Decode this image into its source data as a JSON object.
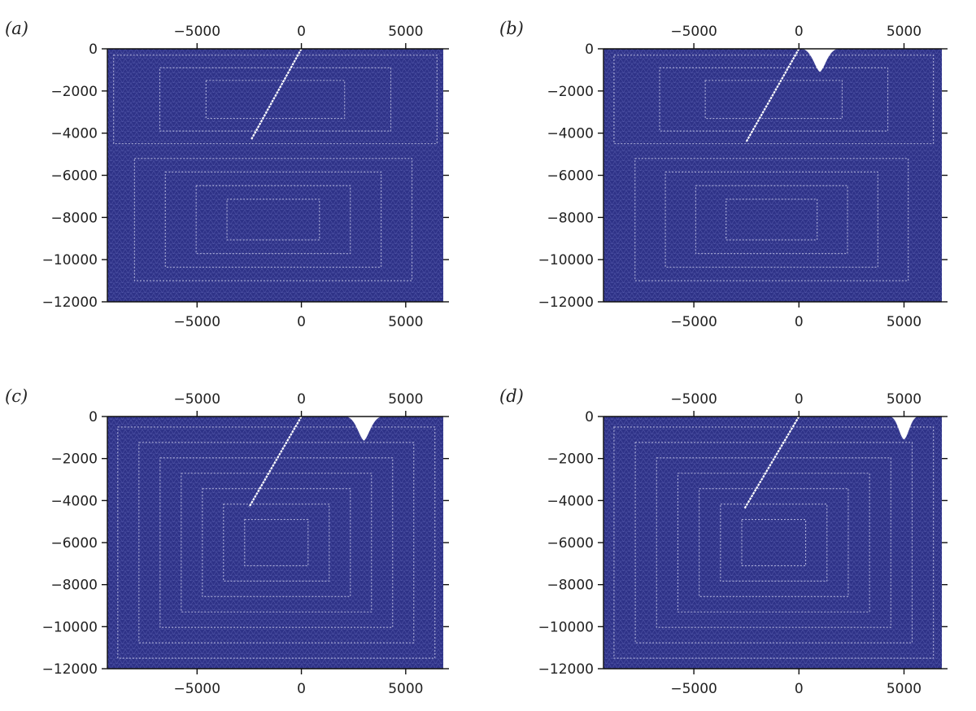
{
  "colors": {
    "mesh": "#2f3388",
    "mesh_line": "#c9cbe8",
    "fault": "#ffffff",
    "notch": "#ffffff"
  },
  "chart_data": [
    {
      "type": "scatter",
      "panel_label": "(a)",
      "xlim": [
        -9300,
        6800
      ],
      "ylim": [
        -12000,
        0
      ],
      "xticks": [
        -5000,
        0,
        5000
      ],
      "xtick_labels": [
        "−5000",
        "0",
        "5000"
      ],
      "yticks": [
        0,
        -2000,
        -4000,
        -6000,
        -8000,
        -10000,
        -12000
      ],
      "ytick_labels": [
        "0",
        "−2000",
        "−4000",
        "−6000",
        "−8000",
        "−10000",
        "−12000"
      ],
      "fault": {
        "x": [
          0,
          -2400
        ],
        "y": [
          0,
          -4300
        ]
      },
      "notch": null,
      "upper_rings": {
        "x": [
          -9000,
          6500
        ],
        "y": [
          -300,
          -4500
        ],
        "count": 3
      },
      "lower_rings": {
        "x": [
          -8000,
          5300
        ],
        "y": [
          -5200,
          -11000
        ],
        "count": 4
      }
    },
    {
      "type": "scatter",
      "panel_label": "(b)",
      "xlim": [
        -9300,
        6800
      ],
      "ylim": [
        -12000,
        0
      ],
      "xticks": [
        -5000,
        0,
        5000
      ],
      "xtick_labels": [
        "−5000",
        "0",
        "5000"
      ],
      "yticks": [
        0,
        -2000,
        -4000,
        -6000,
        -8000,
        -10000,
        -12000
      ],
      "ytick_labels": [
        "0",
        "−2000",
        "−4000",
        "−6000",
        "−8000",
        "−10000",
        "−12000"
      ],
      "fault": {
        "x": [
          0,
          -2500
        ],
        "y": [
          0,
          -4400
        ]
      },
      "notch": {
        "x": 1000,
        "width": 1800,
        "depth": 1100
      },
      "upper_rings": {
        "x": [
          -8800,
          6400
        ],
        "y": [
          -300,
          -4500
        ],
        "count": 3
      },
      "lower_rings": {
        "x": [
          -7800,
          5200
        ],
        "y": [
          -5200,
          -11000
        ],
        "count": 4
      }
    },
    {
      "type": "scatter",
      "panel_label": "(c)",
      "xlim": [
        -9300,
        6800
      ],
      "ylim": [
        -12000,
        0
      ],
      "xticks": [
        -5000,
        0,
        5000
      ],
      "xtick_labels": [
        "−5000",
        "0",
        "5000"
      ],
      "yticks": [
        0,
        -2000,
        -4000,
        -6000,
        -8000,
        -10000,
        -12000
      ],
      "ytick_labels": [
        "0",
        "−2000",
        "−4000",
        "−6000",
        "−8000",
        "−10000",
        "−12000"
      ],
      "fault": {
        "x": [
          0,
          -2500
        ],
        "y": [
          0,
          -4300
        ]
      },
      "notch": {
        "x": 3000,
        "width": 1800,
        "depth": 1150
      },
      "upper_rings": null,
      "lower_rings": {
        "x": [
          -8800,
          6400
        ],
        "y": [
          -500,
          -11500
        ],
        "count": 7
      }
    },
    {
      "type": "scatter",
      "panel_label": "(d)",
      "xlim": [
        -9300,
        6800
      ],
      "ylim": [
        -12000,
        0
      ],
      "xticks": [
        -5000,
        0,
        5000
      ],
      "xtick_labels": [
        "−5000",
        "0",
        "5000"
      ],
      "yticks": [
        0,
        -2000,
        -4000,
        -6000,
        -8000,
        -10000,
        -12000
      ],
      "ytick_labels": [
        "0",
        "−2000",
        "−4000",
        "−6000",
        "−8000",
        "−10000",
        "−12000"
      ],
      "fault": {
        "x": [
          0,
          -2600
        ],
        "y": [
          0,
          -4400
        ]
      },
      "notch": {
        "x": 5000,
        "width": 1400,
        "depth": 1100
      },
      "upper_rings": null,
      "lower_rings": {
        "x": [
          -8800,
          6400
        ],
        "y": [
          -500,
          -11500
        ],
        "count": 7
      }
    }
  ]
}
